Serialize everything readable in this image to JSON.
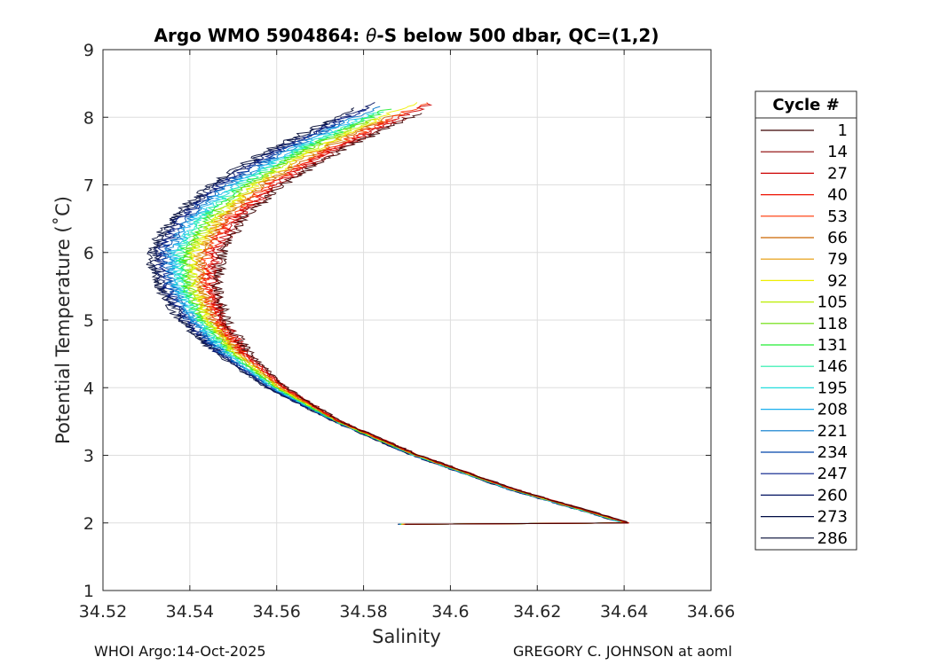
{
  "chart_data": {
    "type": "line",
    "title": {
      "prefix": "Argo WMO 5904864: ",
      "theta_symbol": "θ",
      "suffix": "-S below 500 dbar,  QC=(1,2)"
    },
    "xlabel": "Salinity",
    "ylabel": "Potential Temperature (˚C)",
    "xlim": [
      34.52,
      34.66
    ],
    "ylim": [
      1,
      9
    ],
    "xticks": [
      34.52,
      34.54,
      34.56,
      34.58,
      34.6,
      34.62,
      34.64,
      34.66
    ],
    "xtick_labels": [
      "34.52",
      "34.54",
      "34.56",
      "34.58",
      "34.6",
      "34.62",
      "34.64",
      "34.66"
    ],
    "yticks": [
      1,
      2,
      3,
      4,
      5,
      6,
      7,
      8,
      9
    ],
    "ytick_labels": [
      "1",
      "2",
      "3",
      "4",
      "5",
      "6",
      "7",
      "8",
      "9"
    ],
    "grid": true,
    "legend_title": "Cycle #",
    "legend_position": "right-outside",
    "legend": [
      {
        "cycle": "1",
        "color": "#3a0000"
      },
      {
        "cycle": "14",
        "color": "#8b0000"
      },
      {
        "cycle": "27",
        "color": "#cc0000"
      },
      {
        "cycle": "40",
        "color": "#ee1100"
      },
      {
        "cycle": "53",
        "color": "#ff3300"
      },
      {
        "cycle": "66",
        "color": "#cc6600"
      },
      {
        "cycle": "79",
        "color": "#e69900"
      },
      {
        "cycle": "92",
        "color": "#eeee00"
      },
      {
        "cycle": "105",
        "color": "#bbee00"
      },
      {
        "cycle": "118",
        "color": "#66dd00"
      },
      {
        "cycle": "131",
        "color": "#22ee33"
      },
      {
        "cycle": "146",
        "color": "#22eeaa"
      },
      {
        "cycle": "195",
        "color": "#22dddd"
      },
      {
        "cycle": "208",
        "color": "#1ab0ee"
      },
      {
        "cycle": "221",
        "color": "#0077cc"
      },
      {
        "cycle": "234",
        "color": "#0044aa"
      },
      {
        "cycle": "247",
        "color": "#001a88"
      },
      {
        "cycle": "260",
        "color": "#001060"
      },
      {
        "cycle": "273",
        "color": "#000c44"
      },
      {
        "cycle": "286",
        "color": "#000833"
      }
    ],
    "profile_mean": [
      {
        "theta": 2.0,
        "s": 34.6405
      },
      {
        "theta": 2.5,
        "s": 34.614
      },
      {
        "theta": 3.0,
        "s": 34.592
      },
      {
        "theta": 3.5,
        "s": 34.574
      },
      {
        "theta": 4.0,
        "s": 34.56
      },
      {
        "theta": 4.5,
        "s": 34.55
      },
      {
        "theta": 5.0,
        "s": 34.543
      },
      {
        "theta": 5.5,
        "s": 34.5395
      },
      {
        "theta": 6.0,
        "s": 34.539
      },
      {
        "theta": 6.5,
        "s": 34.544
      },
      {
        "theta": 7.0,
        "s": 34.553
      },
      {
        "theta": 7.5,
        "s": 34.566
      },
      {
        "theta": 8.0,
        "s": 34.582
      },
      {
        "theta": 8.2,
        "s": 34.589
      }
    ]
  },
  "footer": {
    "left": "WHOI Argo:14-Oct-2025",
    "right": "GREGORY C. JOHNSON at aoml"
  }
}
